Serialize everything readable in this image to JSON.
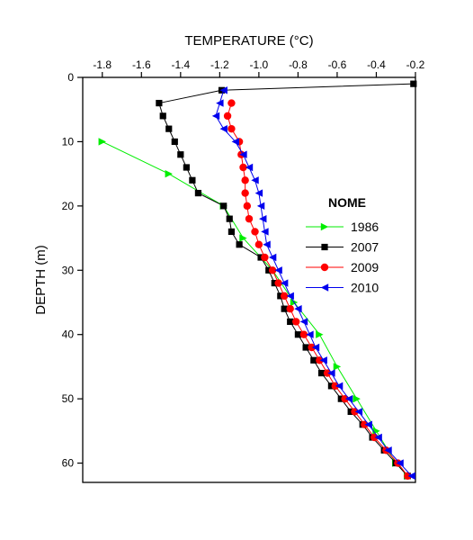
{
  "chart_data": {
    "type": "line",
    "title": "",
    "xlabel": "TEMPERATURE (°C)",
    "ylabel": "DEPTH (m)",
    "x_axis_position": "top",
    "y_inverted": true,
    "xlim": [
      -1.9,
      -0.2
    ],
    "ylim": [
      0,
      63
    ],
    "x_ticks": [
      -1.8,
      -1.6,
      -1.4,
      -1.2,
      -1.0,
      -0.8,
      -0.6,
      -0.4,
      -0.2
    ],
    "x_tick_labels": [
      "-1.8",
      "-1.6",
      "-1.4",
      "-1.2",
      "-1.0",
      "-0.8",
      "-0.6",
      "-0.4",
      "-0.2"
    ],
    "y_ticks": [
      0,
      10,
      20,
      30,
      40,
      50,
      60
    ],
    "y_tick_labels": [
      "0",
      "10",
      "20",
      "30",
      "40",
      "50",
      "60"
    ],
    "legend_title": "NOME",
    "legend_position": "right-middle",
    "grid": false,
    "series": [
      {
        "name": "1986",
        "color": "#00ee00",
        "marker": "triangle-right",
        "points": [
          [
            -1.8,
            10
          ],
          [
            -1.46,
            15
          ],
          [
            -1.18,
            20
          ],
          [
            -1.08,
            25
          ],
          [
            -0.93,
            30
          ],
          [
            -0.82,
            35
          ],
          [
            -0.69,
            40
          ],
          [
            -0.6,
            45
          ],
          [
            -0.5,
            50
          ],
          [
            -0.4,
            55
          ],
          [
            -0.3,
            60
          ],
          [
            -0.24,
            62
          ]
        ]
      },
      {
        "name": "2007",
        "color": "#000000",
        "marker": "square",
        "points": [
          [
            -0.21,
            1
          ],
          [
            -1.19,
            2
          ],
          [
            -1.51,
            4
          ],
          [
            -1.49,
            6
          ],
          [
            -1.46,
            8
          ],
          [
            -1.43,
            10
          ],
          [
            -1.4,
            12
          ],
          [
            -1.37,
            14
          ],
          [
            -1.34,
            16
          ],
          [
            -1.31,
            18
          ],
          [
            -1.18,
            20
          ],
          [
            -1.15,
            22
          ],
          [
            -1.14,
            24
          ],
          [
            -1.1,
            26
          ],
          [
            -0.99,
            28
          ],
          [
            -0.95,
            30
          ],
          [
            -0.92,
            32
          ],
          [
            -0.89,
            34
          ],
          [
            -0.87,
            36
          ],
          [
            -0.84,
            38
          ],
          [
            -0.8,
            40
          ],
          [
            -0.76,
            42
          ],
          [
            -0.72,
            44
          ],
          [
            -0.68,
            46
          ],
          [
            -0.63,
            48
          ],
          [
            -0.58,
            50
          ],
          [
            -0.53,
            52
          ],
          [
            -0.47,
            54
          ],
          [
            -0.42,
            56
          ],
          [
            -0.36,
            58
          ],
          [
            -0.3,
            60
          ],
          [
            -0.24,
            62
          ]
        ]
      },
      {
        "name": "2009",
        "color": "#ff0000",
        "marker": "circle",
        "points": [
          [
            -1.14,
            4
          ],
          [
            -1.16,
            6
          ],
          [
            -1.14,
            8
          ],
          [
            -1.1,
            10
          ],
          [
            -1.09,
            12
          ],
          [
            -1.08,
            14
          ],
          [
            -1.07,
            16
          ],
          [
            -1.07,
            18
          ],
          [
            -1.06,
            20
          ],
          [
            -1.05,
            22
          ],
          [
            -1.02,
            24
          ],
          [
            -1.0,
            26
          ],
          [
            -0.97,
            28
          ],
          [
            -0.93,
            30
          ],
          [
            -0.9,
            32
          ],
          [
            -0.87,
            34
          ],
          [
            -0.84,
            36
          ],
          [
            -0.81,
            38
          ],
          [
            -0.77,
            40
          ],
          [
            -0.73,
            42
          ],
          [
            -0.69,
            44
          ],
          [
            -0.65,
            46
          ],
          [
            -0.61,
            48
          ],
          [
            -0.56,
            50
          ],
          [
            -0.51,
            52
          ],
          [
            -0.46,
            54
          ],
          [
            -0.41,
            56
          ],
          [
            -0.35,
            58
          ],
          [
            -0.29,
            60
          ],
          [
            -0.24,
            62
          ]
        ]
      },
      {
        "name": "2010",
        "color": "#0000ee",
        "marker": "triangle-left",
        "points": [
          [
            -1.18,
            2
          ],
          [
            -1.2,
            4
          ],
          [
            -1.22,
            6
          ],
          [
            -1.18,
            8
          ],
          [
            -1.12,
            10
          ],
          [
            -1.08,
            12
          ],
          [
            -1.05,
            14
          ],
          [
            -1.02,
            16
          ],
          [
            -1.0,
            18
          ],
          [
            -0.99,
            20
          ],
          [
            -0.98,
            22
          ],
          [
            -0.97,
            24
          ],
          [
            -0.96,
            26
          ],
          [
            -0.93,
            28
          ],
          [
            -0.9,
            30
          ],
          [
            -0.87,
            32
          ],
          [
            -0.84,
            34
          ],
          [
            -0.8,
            36
          ],
          [
            -0.77,
            38
          ],
          [
            -0.74,
            40
          ],
          [
            -0.71,
            42
          ],
          [
            -0.67,
            44
          ],
          [
            -0.63,
            46
          ],
          [
            -0.59,
            48
          ],
          [
            -0.54,
            50
          ],
          [
            -0.49,
            52
          ],
          [
            -0.44,
            54
          ],
          [
            -0.39,
            56
          ],
          [
            -0.34,
            58
          ],
          [
            -0.28,
            60
          ],
          [
            -0.22,
            62
          ]
        ]
      }
    ]
  }
}
